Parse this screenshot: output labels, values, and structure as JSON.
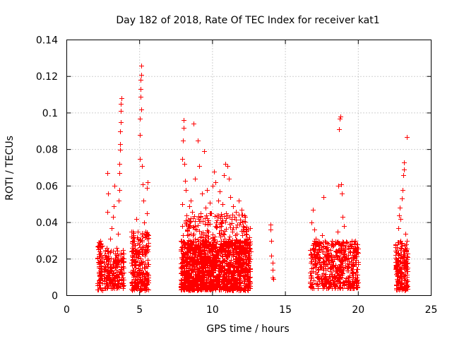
{
  "chart_data": {
    "type": "scatter",
    "title": "Day 182 of 2018, Rate Of TEC Index for receiver kat1",
    "xlabel": "GPS time / hours",
    "ylabel": "ROTI / TECUs",
    "xlim": [
      0,
      25
    ],
    "ylim": [
      0,
      0.14
    ],
    "xticks": [
      0,
      5,
      10,
      15,
      20,
      25
    ],
    "xtick_labels": [
      "0",
      "5",
      "10",
      "15",
      "20",
      "25"
    ],
    "yticks": [
      0,
      0.02,
      0.04,
      0.06,
      0.08,
      0.1,
      0.12,
      0.14
    ],
    "ytick_labels": [
      "0",
      "0.02",
      "0.04",
      "0.06",
      "0.08",
      "0.1",
      "0.12",
      "0.14"
    ],
    "grid": true,
    "marker": "+",
    "color": "#ff0000",
    "series": [
      {
        "name": "ROTI",
        "points": [
          [
            2.2,
            0.006
          ],
          [
            2.2,
            0.012
          ],
          [
            2.2,
            0.018
          ],
          [
            2.25,
            0.024
          ],
          [
            2.3,
            0.03
          ],
          [
            2.3,
            0.009
          ],
          [
            2.35,
            0.015
          ],
          [
            2.35,
            0.021
          ],
          [
            2.6,
            0.008
          ],
          [
            2.65,
            0.014
          ],
          [
            2.7,
            0.02
          ],
          [
            2.75,
            0.026
          ],
          [
            2.8,
            0.046
          ],
          [
            2.8,
            0.067
          ],
          [
            2.85,
            0.056
          ],
          [
            2.9,
            0.011
          ],
          [
            3.0,
            0.031
          ],
          [
            3.1,
            0.037
          ],
          [
            3.15,
            0.043
          ],
          [
            3.2,
            0.049
          ],
          [
            3.25,
            0.06
          ],
          [
            3.3,
            0.02
          ],
          [
            3.35,
            0.014
          ],
          [
            3.4,
            0.026
          ],
          [
            3.45,
            0.008
          ],
          [
            3.5,
            0.034
          ],
          [
            3.55,
            0.052
          ],
          [
            3.6,
            0.058
          ],
          [
            3.6,
            0.067
          ],
          [
            3.62,
            0.072
          ],
          [
            3.65,
            0.08
          ],
          [
            3.65,
            0.083
          ],
          [
            3.68,
            0.09
          ],
          [
            3.7,
            0.095
          ],
          [
            3.7,
            0.101
          ],
          [
            3.72,
            0.105
          ],
          [
            3.75,
            0.108
          ],
          [
            3.75,
            0.019
          ],
          [
            3.8,
            0.012
          ],
          [
            3.85,
            0.025
          ],
          [
            4.5,
            0.006
          ],
          [
            4.5,
            0.013
          ],
          [
            4.55,
            0.02
          ],
          [
            4.6,
            0.027
          ],
          [
            4.6,
            0.033
          ],
          [
            4.65,
            0.017
          ],
          [
            4.7,
            0.024
          ],
          [
            4.75,
            0.042
          ],
          [
            4.8,
            0.009
          ],
          [
            4.85,
            0.031
          ],
          [
            4.9,
            0.015
          ],
          [
            4.95,
            0.028
          ],
          [
            5.0,
            0.075
          ],
          [
            5.0,
            0.088
          ],
          [
            5.02,
            0.097
          ],
          [
            5.05,
            0.109
          ],
          [
            5.05,
            0.113
          ],
          [
            5.08,
            0.118
          ],
          [
            5.1,
            0.121
          ],
          [
            5.1,
            0.126
          ],
          [
            5.12,
            0.102
          ],
          [
            5.15,
            0.071
          ],
          [
            5.2,
            0.061
          ],
          [
            5.25,
            0.052
          ],
          [
            5.3,
            0.04
          ],
          [
            5.35,
            0.022
          ],
          [
            5.4,
            0.035
          ],
          [
            5.45,
            0.012
          ],
          [
            5.5,
            0.045
          ],
          [
            5.5,
            0.059
          ],
          [
            5.55,
            0.062
          ],
          [
            5.6,
            0.007
          ],
          [
            7.85,
            0.03
          ],
          [
            7.9,
            0.05
          ],
          [
            7.9,
            0.075
          ],
          [
            7.95,
            0.085
          ],
          [
            8.0,
            0.096
          ],
          [
            8.0,
            0.092
          ],
          [
            8.05,
            0.072
          ],
          [
            8.1,
            0.063
          ],
          [
            8.15,
            0.058
          ],
          [
            8.2,
            0.044
          ],
          [
            8.3,
            0.038
          ],
          [
            8.4,
            0.049
          ],
          [
            8.5,
            0.052
          ],
          [
            8.6,
            0.046
          ],
          [
            8.7,
            0.094
          ],
          [
            8.8,
            0.064
          ],
          [
            8.9,
            0.036
          ],
          [
            9.0,
            0.085
          ],
          [
            9.1,
            0.071
          ],
          [
            9.2,
            0.043
          ],
          [
            9.3,
            0.056
          ],
          [
            9.4,
            0.079
          ],
          [
            9.5,
            0.048
          ],
          [
            9.6,
            0.058
          ],
          [
            9.7,
            0.035
          ],
          [
            9.8,
            0.051
          ],
          [
            9.9,
            0.045
          ],
          [
            10.0,
            0.06
          ],
          [
            10.1,
            0.068
          ],
          [
            10.2,
            0.062
          ],
          [
            10.3,
            0.044
          ],
          [
            10.4,
            0.052
          ],
          [
            10.5,
            0.057
          ],
          [
            10.6,
            0.038
          ],
          [
            10.7,
            0.05
          ],
          [
            10.8,
            0.066
          ],
          [
            10.9,
            0.072
          ],
          [
            11.0,
            0.071
          ],
          [
            11.1,
            0.064
          ],
          [
            11.2,
            0.054
          ],
          [
            11.3,
            0.042
          ],
          [
            11.4,
            0.049
          ],
          [
            11.5,
            0.043
          ],
          [
            11.6,
            0.046
          ],
          [
            11.7,
            0.039
          ],
          [
            11.8,
            0.052
          ],
          [
            11.9,
            0.04
          ],
          [
            12.0,
            0.047
          ],
          [
            12.1,
            0.038
          ],
          [
            12.2,
            0.044
          ],
          [
            12.3,
            0.034
          ],
          [
            12.4,
            0.031
          ],
          [
            12.5,
            0.02
          ],
          [
            12.6,
            0.024
          ],
          [
            14.0,
            0.039
          ],
          [
            14.0,
            0.036
          ],
          [
            14.05,
            0.03
          ],
          [
            14.05,
            0.022
          ],
          [
            14.1,
            0.018
          ],
          [
            14.1,
            0.014
          ],
          [
            14.1,
            0.01
          ],
          [
            14.15,
            0.009
          ],
          [
            16.8,
            0.04
          ],
          [
            16.9,
            0.047
          ],
          [
            17.0,
            0.036
          ],
          [
            17.1,
            0.031
          ],
          [
            17.2,
            0.028
          ],
          [
            17.3,
            0.025
          ],
          [
            17.5,
            0.033
          ],
          [
            17.6,
            0.054
          ],
          [
            17.8,
            0.026
          ],
          [
            18.0,
            0.022
          ],
          [
            18.2,
            0.03
          ],
          [
            18.4,
            0.028
          ],
          [
            18.6,
            0.035
          ],
          [
            18.65,
            0.06
          ],
          [
            18.7,
            0.091
          ],
          [
            18.72,
            0.097
          ],
          [
            18.75,
            0.098
          ],
          [
            18.8,
            0.061
          ],
          [
            18.85,
            0.056
          ],
          [
            18.9,
            0.043
          ],
          [
            19.0,
            0.038
          ],
          [
            19.2,
            0.029
          ],
          [
            19.4,
            0.024
          ],
          [
            19.6,
            0.021
          ],
          [
            19.8,
            0.026
          ],
          [
            19.9,
            0.028
          ],
          [
            22.6,
            0.006
          ],
          [
            22.65,
            0.019
          ],
          [
            22.7,
            0.023
          ],
          [
            22.75,
            0.037
          ],
          [
            22.8,
            0.044
          ],
          [
            22.85,
            0.048
          ],
          [
            22.9,
            0.042
          ],
          [
            23.0,
            0.053
          ],
          [
            23.05,
            0.058
          ],
          [
            23.1,
            0.066
          ],
          [
            23.12,
            0.069
          ],
          [
            23.15,
            0.073
          ],
          [
            23.2,
            0.025
          ],
          [
            23.25,
            0.034
          ],
          [
            23.3,
            0.016
          ],
          [
            23.35,
            0.087
          ]
        ],
        "dense_clusters": [
          {
            "x_range": [
              2.1,
              2.45
            ],
            "y_range": [
              0.003,
              0.03
            ],
            "count": 70
          },
          {
            "x_range": [
              2.55,
              3.9
            ],
            "y_range": [
              0.004,
              0.025
            ],
            "count": 190
          },
          {
            "x_range": [
              4.4,
              5.6
            ],
            "y_range": [
              0.003,
              0.035
            ],
            "count": 260
          },
          {
            "x_range": [
              7.8,
              12.6
            ],
            "y_range": [
              0.003,
              0.03
            ],
            "count": 1300
          },
          {
            "x_range": [
              7.9,
              12.6
            ],
            "y_range": [
              0.025,
              0.045
            ],
            "count": 230
          },
          {
            "x_range": [
              16.7,
              20.0
            ],
            "y_range": [
              0.004,
              0.03
            ],
            "count": 550
          },
          {
            "x_range": [
              22.55,
              23.4
            ],
            "y_range": [
              0.003,
              0.03
            ],
            "count": 180
          }
        ]
      }
    ]
  }
}
